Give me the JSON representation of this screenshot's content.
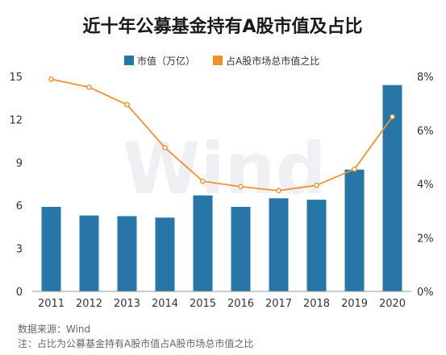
{
  "title": "近十年公募基金持有A股市值及占比",
  "watermark": "Wind",
  "colors": {
    "bar": "#2677a8",
    "line": "#f0922b",
    "axis": "#999999",
    "title": "#1a1a1a"
  },
  "footnotes": {
    "source": "数据来源：Wind",
    "note": "注：占比为公募基金持有A股市值占A股市场总市值之比"
  },
  "chart_data": {
    "type": "bar+line",
    "categories": [
      "2011",
      "2012",
      "2013",
      "2014",
      "2015",
      "2016",
      "2017",
      "2018",
      "2019",
      "2020"
    ],
    "series": [
      {
        "name": "市值（万亿）",
        "type": "bar",
        "axis": "left",
        "values": [
          5.9,
          5.3,
          5.25,
          5.15,
          6.7,
          5.9,
          6.5,
          6.4,
          8.5,
          14.4
        ]
      },
      {
        "name": "占A股市场总市值之比",
        "type": "line",
        "axis": "right",
        "values": [
          7.9,
          7.6,
          6.95,
          5.35,
          4.1,
          3.9,
          3.75,
          3.95,
          4.55,
          6.5
        ]
      }
    ],
    "y_left": {
      "ylim": [
        0,
        15
      ],
      "ticks": [
        0,
        3,
        6,
        9,
        12,
        15
      ],
      "tick_labels": [
        "0",
        "3",
        "6",
        "9",
        "12",
        "15"
      ]
    },
    "y_right": {
      "ylim": [
        0,
        8
      ],
      "ticks": [
        0,
        2,
        4,
        6,
        8
      ],
      "tick_labels": [
        "0%",
        "2%",
        "4%",
        "6%",
        "8%"
      ]
    },
    "grid": false,
    "legend_position": "top-right"
  }
}
